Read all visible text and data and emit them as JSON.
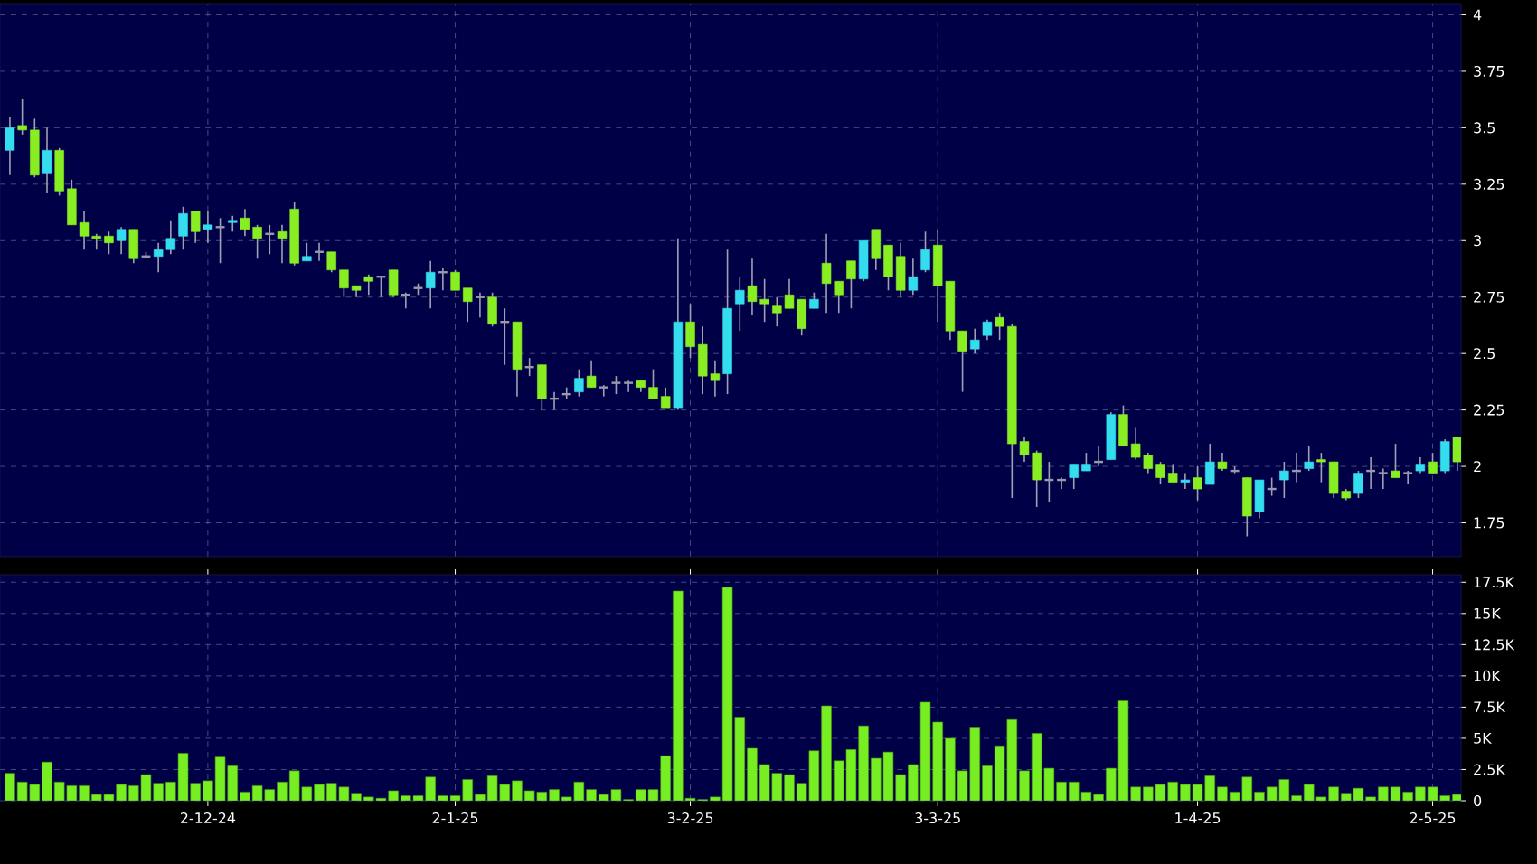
{
  "chart_data": [
    {
      "type": "candlestick",
      "categories": [
        null,
        null,
        null,
        null,
        null,
        null,
        null,
        null,
        null,
        null,
        null,
        null,
        null,
        null,
        null,
        null,
        null,
        null,
        null,
        null,
        null,
        null,
        null,
        null,
        null,
        null,
        null,
        null,
        null,
        null,
        null,
        null,
        null,
        null,
        null,
        null,
        null,
        null,
        null,
        null,
        null,
        null,
        null,
        null,
        null,
        null,
        null,
        null,
        null,
        null,
        null,
        null,
        null,
        null,
        null,
        null,
        null,
        null,
        null,
        null,
        null,
        null,
        null,
        null,
        null,
        null,
        null,
        null,
        null,
        null,
        null,
        null,
        null,
        null,
        null,
        null,
        null,
        null,
        null,
        null,
        null,
        null,
        null,
        null,
        null,
        null,
        null,
        null,
        null,
        null,
        null,
        null,
        null,
        null,
        null,
        null,
        null,
        null,
        null,
        null,
        null,
        null,
        null,
        null,
        null,
        null,
        null,
        null,
        null,
        null,
        null,
        null,
        null,
        null,
        null,
        null,
        null,
        null
      ],
      "ohlc": [
        [
          3.4,
          3.55,
          3.29,
          3.5
        ],
        [
          3.51,
          3.63,
          3.47,
          3.49
        ],
        [
          3.49,
          3.54,
          3.28,
          3.29
        ],
        [
          3.3,
          3.5,
          3.21,
          3.4
        ],
        [
          3.4,
          3.41,
          3.2,
          3.22
        ],
        [
          3.23,
          3.27,
          3.07,
          3.07
        ],
        [
          3.08,
          3.13,
          2.96,
          3.02
        ],
        [
          3.02,
          3.03,
          2.96,
          3.01
        ],
        [
          3.02,
          3.04,
          2.94,
          2.99
        ],
        [
          3.0,
          3.06,
          2.94,
          3.05
        ],
        [
          3.05,
          3.05,
          2.9,
          2.92
        ],
        [
          2.93,
          2.95,
          2.92,
          2.93
        ],
        [
          2.93,
          2.99,
          2.86,
          2.96
        ],
        [
          2.96,
          3.09,
          2.94,
          3.01
        ],
        [
          3.02,
          3.15,
          2.96,
          3.12
        ],
        [
          3.13,
          3.13,
          2.99,
          3.04
        ],
        [
          3.05,
          3.13,
          2.99,
          3.07
        ],
        [
          3.06,
          3.1,
          2.9,
          3.06
        ],
        [
          3.08,
          3.11,
          3.04,
          3.09
        ],
        [
          3.1,
          3.14,
          3.02,
          3.05
        ],
        [
          3.06,
          3.07,
          2.92,
          3.01
        ],
        [
          3.03,
          3.07,
          2.94,
          3.03
        ],
        [
          3.04,
          3.07,
          2.9,
          3.01
        ],
        [
          3.14,
          3.17,
          2.89,
          2.9
        ],
        [
          2.91,
          2.99,
          2.91,
          2.93
        ],
        [
          2.95,
          2.99,
          2.91,
          2.95
        ],
        [
          2.95,
          2.95,
          2.86,
          2.87
        ],
        [
          2.87,
          2.87,
          2.75,
          2.79
        ],
        [
          2.8,
          2.8,
          2.75,
          2.78
        ],
        [
          2.84,
          2.85,
          2.76,
          2.82
        ],
        [
          2.84,
          2.84,
          2.75,
          2.84
        ],
        [
          2.87,
          2.87,
          2.75,
          2.76
        ],
        [
          2.76,
          2.77,
          2.7,
          2.76
        ],
        [
          2.79,
          2.81,
          2.76,
          2.79
        ],
        [
          2.79,
          2.91,
          2.7,
          2.86
        ],
        [
          2.86,
          2.88,
          2.78,
          2.86
        ],
        [
          2.86,
          2.87,
          2.78,
          2.78
        ],
        [
          2.79,
          2.79,
          2.64,
          2.73
        ],
        [
          2.75,
          2.77,
          2.66,
          2.75
        ],
        [
          2.75,
          2.77,
          2.62,
          2.63
        ],
        [
          2.64,
          2.7,
          2.45,
          2.64
        ],
        [
          2.64,
          2.64,
          2.31,
          2.43
        ],
        [
          2.44,
          2.48,
          2.4,
          2.44
        ],
        [
          2.45,
          2.45,
          2.25,
          2.3
        ],
        [
          2.3,
          2.33,
          2.25,
          2.3
        ],
        [
          2.32,
          2.35,
          2.3,
          2.32
        ],
        [
          2.33,
          2.43,
          2.31,
          2.39
        ],
        [
          2.4,
          2.47,
          2.35,
          2.35
        ],
        [
          2.35,
          2.36,
          2.31,
          2.35
        ],
        [
          2.37,
          2.4,
          2.32,
          2.37
        ],
        [
          2.37,
          2.38,
          2.33,
          2.37
        ],
        [
          2.38,
          2.38,
          2.33,
          2.35
        ],
        [
          2.35,
          2.43,
          2.3,
          2.3
        ],
        [
          2.31,
          2.35,
          2.26,
          2.26
        ],
        [
          2.26,
          3.01,
          2.25,
          2.64
        ],
        [
          2.64,
          2.72,
          2.48,
          2.53
        ],
        [
          2.54,
          2.62,
          2.32,
          2.4
        ],
        [
          2.41,
          2.47,
          2.31,
          2.38
        ],
        [
          2.41,
          2.96,
          2.32,
          2.7
        ],
        [
          2.72,
          2.84,
          2.6,
          2.78
        ],
        [
          2.8,
          2.92,
          2.67,
          2.73
        ],
        [
          2.74,
          2.83,
          2.64,
          2.72
        ],
        [
          2.71,
          2.75,
          2.62,
          2.68
        ],
        [
          2.76,
          2.83,
          2.7,
          2.7
        ],
        [
          2.74,
          2.74,
          2.58,
          2.61
        ],
        [
          2.7,
          2.77,
          2.7,
          2.74
        ],
        [
          2.9,
          3.03,
          2.68,
          2.81
        ],
        [
          2.82,
          2.82,
          2.68,
          2.76
        ],
        [
          2.91,
          2.91,
          2.7,
          2.83
        ],
        [
          2.83,
          3.0,
          2.82,
          3.0
        ],
        [
          3.05,
          3.05,
          2.87,
          2.92
        ],
        [
          2.98,
          2.98,
          2.78,
          2.84
        ],
        [
          2.93,
          2.99,
          2.75,
          2.78
        ],
        [
          2.78,
          2.92,
          2.76,
          2.84
        ],
        [
          2.87,
          3.04,
          2.86,
          2.96
        ],
        [
          2.98,
          3.05,
          2.64,
          2.8
        ],
        [
          2.82,
          2.82,
          2.56,
          2.6
        ],
        [
          2.6,
          2.6,
          2.33,
          2.51
        ],
        [
          2.52,
          2.61,
          2.5,
          2.56
        ],
        [
          2.58,
          2.65,
          2.56,
          2.64
        ],
        [
          2.66,
          2.68,
          2.56,
          2.62
        ],
        [
          2.62,
          2.63,
          1.86,
          2.1
        ],
        [
          2.11,
          2.13,
          2.02,
          2.05
        ],
        [
          2.06,
          2.07,
          1.82,
          1.94
        ],
        [
          1.94,
          2.02,
          1.84,
          1.94
        ],
        [
          1.94,
          1.95,
          1.9,
          1.94
        ],
        [
          1.95,
          2.01,
          1.9,
          2.01
        ],
        [
          1.98,
          2.06,
          1.98,
          2.01
        ],
        [
          2.02,
          2.09,
          2.0,
          2.02
        ],
        [
          2.03,
          2.24,
          2.03,
          2.23
        ],
        [
          2.23,
          2.27,
          2.09,
          2.09
        ],
        [
          2.1,
          2.17,
          2.03,
          2.04
        ],
        [
          2.05,
          2.06,
          1.97,
          1.99
        ],
        [
          2.01,
          2.02,
          1.92,
          1.95
        ],
        [
          1.97,
          2.01,
          1.93,
          1.93
        ],
        [
          1.93,
          1.97,
          1.9,
          1.94
        ],
        [
          1.95,
          2.0,
          1.85,
          1.9
        ],
        [
          1.92,
          2.1,
          1.92,
          2.02
        ],
        [
          2.02,
          2.06,
          1.98,
          1.99
        ],
        [
          1.98,
          2.0,
          1.97,
          1.98
        ],
        [
          1.95,
          1.95,
          1.69,
          1.78
        ],
        [
          1.8,
          1.94,
          1.77,
          1.94
        ],
        [
          1.9,
          1.95,
          1.87,
          1.9
        ],
        [
          1.94,
          2.02,
          1.86,
          1.98
        ],
        [
          1.98,
          2.06,
          1.93,
          1.98
        ],
        [
          1.99,
          2.09,
          1.98,
          2.02
        ],
        [
          2.03,
          2.06,
          1.93,
          2.02
        ],
        [
          2.02,
          2.02,
          1.86,
          1.88
        ],
        [
          1.89,
          1.9,
          1.85,
          1.86
        ],
        [
          1.88,
          1.98,
          1.86,
          1.97
        ],
        [
          1.98,
          2.04,
          1.9,
          1.98
        ],
        [
          1.97,
          1.99,
          1.9,
          1.97
        ],
        [
          1.98,
          2.1,
          1.95,
          1.95
        ],
        [
          1.97,
          1.98,
          1.92,
          1.97
        ],
        [
          1.98,
          2.04,
          1.97,
          2.01
        ],
        [
          2.02,
          2.06,
          1.97,
          1.97
        ],
        [
          1.98,
          2.12,
          1.97,
          2.11
        ],
        [
          2.13,
          2.13,
          1.98,
          2.02
        ]
      ],
      "colors": [
        "#33ddee",
        "#88ee22",
        "#88ee22",
        "#33ddee",
        "#88ee22",
        "#88ee22",
        "#88ee22",
        "#88ee22",
        "#88ee22",
        "#33ddee",
        "#88ee22",
        "#9999aa",
        "#33ddee",
        "#33ddee",
        "#33ddee",
        "#88ee22",
        "#33ddee",
        "#9999aa",
        "#33ddee",
        "#88ee22",
        "#88ee22",
        "#9999aa",
        "#88ee22",
        "#88ee22",
        "#33ddee",
        "#9999aa",
        "#88ee22",
        "#88ee22",
        "#88ee22",
        "#88ee22",
        "#9999aa",
        "#88ee22",
        "#9999aa",
        "#9999aa",
        "#33ddee",
        "#9999aa",
        "#88ee22",
        "#88ee22",
        "#9999aa",
        "#88ee22",
        "#9999aa",
        "#88ee22",
        "#9999aa",
        "#88ee22",
        "#9999aa",
        "#9999aa",
        "#33ddee",
        "#88ee22",
        "#9999aa",
        "#9999aa",
        "#9999aa",
        "#88ee22",
        "#88ee22",
        "#88ee22",
        "#33ddee",
        "#88ee22",
        "#88ee22",
        "#88ee22",
        "#33ddee",
        "#33ddee",
        "#88ee22",
        "#88ee22",
        "#88ee22",
        "#88ee22",
        "#88ee22",
        "#33ddee",
        "#88ee22",
        "#88ee22",
        "#88ee22",
        "#33ddee",
        "#88ee22",
        "#88ee22",
        "#88ee22",
        "#33ddee",
        "#33ddee",
        "#88ee22",
        "#88ee22",
        "#88ee22",
        "#33ddee",
        "#33ddee",
        "#88ee22",
        "#88ee22",
        "#88ee22",
        "#88ee22",
        "#9999aa",
        "#9999aa",
        "#33ddee",
        "#33ddee",
        "#9999aa",
        "#33ddee",
        "#88ee22",
        "#88ee22",
        "#88ee22",
        "#88ee22",
        "#88ee22",
        "#33ddee",
        "#88ee22",
        "#33ddee",
        "#88ee22",
        "#9999aa",
        "#88ee22",
        "#33ddee",
        "#9999aa",
        "#33ddee",
        "#9999aa",
        "#33ddee",
        "#88ee22",
        "#88ee22",
        "#88ee22",
        "#33ddee",
        "#9999aa",
        "#9999aa",
        "#88ee22",
        "#9999aa",
        "#33ddee",
        "#88ee22",
        "#33ddee",
        "#88ee22"
      ],
      "ylim": [
        1.6,
        4.05
      ],
      "yticks": [
        1.75,
        2,
        2.25,
        2.5,
        2.75,
        3,
        3.25,
        3.5,
        3.75,
        4
      ],
      "grid": true,
      "tick_labels": "y"
    },
    {
      "type": "bar",
      "categories": [
        null,
        null,
        null,
        null,
        null,
        null,
        null,
        null,
        null,
        null,
        null,
        null,
        null,
        null,
        null,
        null,
        "2-12-24",
        null,
        null,
        null,
        null,
        null,
        null,
        null,
        null,
        null,
        null,
        null,
        null,
        null,
        null,
        null,
        null,
        null,
        null,
        null,
        "2-1-25",
        null,
        null,
        null,
        null,
        null,
        null,
        null,
        null,
        null,
        null,
        null,
        null,
        null,
        null,
        null,
        null,
        null,
        null,
        "3-2-25",
        null,
        null,
        null,
        null,
        null,
        null,
        null,
        null,
        null,
        null,
        null,
        null,
        null,
        null,
        null,
        null,
        null,
        null,
        null,
        "3-3-25",
        null,
        null,
        null,
        null,
        null,
        null,
        null,
        null,
        null,
        null,
        null,
        null,
        null,
        null,
        null,
        null,
        null,
        null,
        null,
        null,
        "1-4-25",
        null,
        null,
        null,
        null,
        null,
        null,
        null,
        null,
        null,
        null,
        null,
        null,
        null,
        null,
        null,
        null,
        null,
        null,
        "2-5-25",
        null,
        null
      ],
      "values": [
        2.2,
        1.5,
        1.3,
        3.1,
        1.5,
        1.2,
        1.2,
        0.5,
        0.5,
        1.3,
        1.2,
        2.1,
        1.4,
        1.5,
        3.8,
        1.4,
        1.6,
        3.5,
        2.8,
        0.7,
        1.2,
        0.9,
        1.5,
        2.4,
        1.1,
        1.3,
        1.4,
        1.1,
        0.6,
        0.3,
        0.2,
        0.8,
        0.4,
        0.4,
        1.9,
        0.4,
        0.4,
        1.7,
        0.5,
        2.0,
        1.3,
        1.6,
        0.8,
        0.7,
        0.9,
        0.3,
        1.5,
        0.9,
        0.5,
        0.9,
        0.1,
        0.9,
        0.9,
        3.6,
        16.8,
        0.2,
        0.1,
        0.3,
        17.1,
        6.7,
        4.2,
        2.9,
        2.2,
        2.1,
        1.4,
        4.0,
        7.6,
        3.2,
        4.1,
        6.0,
        3.4,
        3.9,
        2.1,
        2.9,
        7.9,
        6.3,
        5.0,
        2.4,
        5.9,
        2.8,
        4.4,
        6.5,
        2.4,
        5.4,
        2.6,
        1.5,
        1.5,
        0.7,
        0.5,
        2.6,
        8.0,
        1.1,
        1.1,
        1.3,
        1.5,
        1.3,
        1.3,
        2.0,
        1.1,
        0.7,
        1.9,
        0.7,
        1.1,
        1.7,
        0.4,
        1.3,
        0.3,
        1.1,
        0.6,
        1.0,
        0.3,
        1.1,
        1.1,
        0.7,
        1.1,
        1.1,
        0.4,
        0.5
      ],
      "color": "#77ee22",
      "ylim": [
        0,
        18.1
      ],
      "yticks": [
        0,
        {
          "value": 2.5,
          "label": "2.5K"
        },
        {
          "value": 5,
          "label": "5K"
        },
        {
          "value": 7.5,
          "label": "7.5K"
        },
        {
          "value": 10,
          "label": "10K"
        },
        {
          "value": 12.5,
          "label": "12.5K"
        },
        {
          "value": 15,
          "label": "15K"
        },
        {
          "value": 17.5,
          "label": "17.5K"
        }
      ],
      "grid": true
    }
  ]
}
